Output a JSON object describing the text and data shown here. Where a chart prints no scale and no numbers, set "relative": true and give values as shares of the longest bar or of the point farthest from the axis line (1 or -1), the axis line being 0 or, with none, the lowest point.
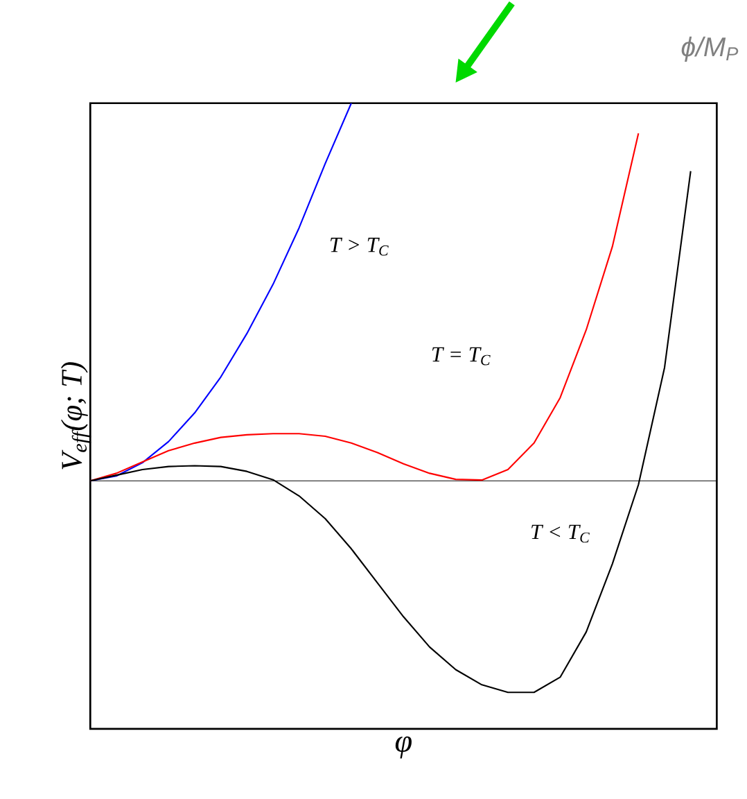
{
  "chart_data": {
    "type": "line",
    "relative": true,
    "categories": [
      null,
      null,
      null,
      null,
      null,
      null,
      null,
      null,
      null,
      null,
      null,
      null,
      null,
      null,
      null,
      null,
      null,
      null,
      null,
      null,
      null,
      null,
      null,
      null,
      null
    ],
    "xlabel": "φ",
    "ylabel": "V$_{eff}$(φ; T)",
    "series": [
      {
        "color": "#0000ff",
        "values": [
          0,
          0.013,
          0.048,
          0.104,
          0.18,
          0.275,
          0.39,
          0.52,
          0.67,
          0.84,
          1.0,
          null,
          null,
          null,
          null,
          null,
          null,
          null,
          null,
          null,
          null,
          null,
          null,
          null,
          null
        ]
      },
      {
        "color": "#ff0000",
        "values": [
          0,
          0.02,
          0.05,
          0.08,
          0.1,
          0.115,
          0.122,
          0.125,
          0.125,
          0.118,
          0.1,
          0.075,
          0.045,
          0.02,
          0.004,
          0.002,
          0.03,
          0.1,
          0.22,
          0.4,
          0.62,
          0.92,
          null,
          null,
          null
        ]
      },
      {
        "color": "#000000",
        "values": [
          0,
          0.015,
          0.03,
          0.038,
          0.04,
          0.038,
          0.025,
          0.003,
          -0.04,
          -0.1,
          -0.18,
          -0.27,
          -0.36,
          -0.44,
          -0.5,
          -0.54,
          -0.56,
          -0.56,
          -0.52,
          -0.4,
          -0.22,
          -0.01,
          0.3,
          0.82,
          null
        ]
      }
    ],
    "annotations": [
      "T > T$_{C}$",
      "T = T$_{C}$",
      "T < T$_{C}$",
      "ϕ/M$_{P}$"
    ],
    "marker": "none",
    "line_style": "solid"
  }
}
